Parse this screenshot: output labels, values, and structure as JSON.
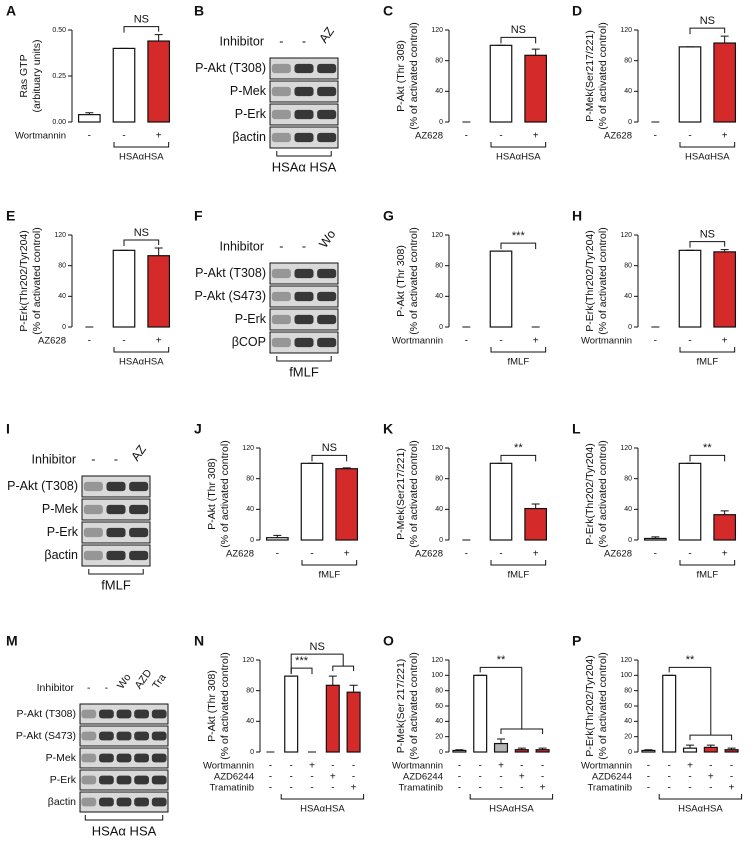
{
  "chart_data": [
    {
      "type": "bar",
      "label": "A",
      "ylabel": [
        "Ras GTP",
        "(arbituary units)"
      ],
      "ylim": [
        0,
        0.5
      ],
      "yticks": [
        {
          "value": 0,
          "label": "0.00"
        },
        {
          "value": 0.25,
          "label": "0.25"
        },
        {
          "value": 0.5,
          "label": "0.50"
        }
      ],
      "values": [
        0.04,
        0.4,
        0.44
      ],
      "errors": [
        0.01,
        0,
        0.035
      ],
      "colors": [
        "#ffffff",
        "#ffffff",
        "#d42a2a"
      ],
      "conditions": [
        {
          "name": "Wortmannin",
          "signs": [
            "-",
            "-",
            "+"
          ]
        }
      ],
      "group": "HSAαHSA",
      "annotations": [
        "NS"
      ]
    },
    {
      "type": "bar",
      "label": "C",
      "ylabel": [
        "P-Akt (Thr 308)",
        "(% of activated control)"
      ],
      "ylim": [
        0,
        120
      ],
      "yticks": [
        0,
        40,
        80,
        120
      ],
      "values": [
        0,
        100,
        87
      ],
      "errors": [
        0,
        0,
        8
      ],
      "colors": [
        "#ffffff",
        "#ffffff",
        "#d42a2a"
      ],
      "conditions": [
        {
          "name": "AZ628",
          "signs": [
            "-",
            "-",
            "+"
          ]
        }
      ],
      "group": "HSAαHSA",
      "annotations": [
        "NS"
      ]
    },
    {
      "type": "bar",
      "label": "D",
      "ylabel": [
        "P-Mek(Ser217/221)",
        "(% of activated control)"
      ],
      "ylim": [
        0,
        120
      ],
      "yticks": [
        0,
        40,
        80,
        120
      ],
      "values": [
        0,
        98,
        103
      ],
      "errors": [
        0,
        0,
        9
      ],
      "colors": [
        "#ffffff",
        "#ffffff",
        "#d42a2a"
      ],
      "conditions": [
        {
          "name": "AZ628",
          "signs": [
            "-",
            "-",
            "+"
          ]
        }
      ],
      "group": "HSAαHSA",
      "annotations": [
        "NS"
      ]
    },
    {
      "type": "bar",
      "label": "E",
      "ylabel": [
        "P-Erk(Thr202/Tyr204)",
        "(% of activated control)"
      ],
      "ylim": [
        0,
        120
      ],
      "yticks": [
        0,
        40,
        80,
        120
      ],
      "values": [
        0,
        100,
        93
      ],
      "errors": [
        0,
        0,
        10
      ],
      "colors": [
        "#ffffff",
        "#ffffff",
        "#d42a2a"
      ],
      "conditions": [
        {
          "name": "AZ628",
          "signs": [
            "-",
            "-",
            "+"
          ]
        }
      ],
      "group": "HSAαHSA",
      "annotations": [
        "NS"
      ]
    },
    {
      "type": "bar",
      "label": "G",
      "ylabel": [
        "P-Akt (Thr 308)",
        "(% of activated control)"
      ],
      "ylim": [
        0,
        120
      ],
      "yticks": [
        0,
        40,
        80,
        120
      ],
      "values": [
        0,
        99,
        0
      ],
      "errors": [
        0,
        0,
        0
      ],
      "colors": [
        "#ffffff",
        "#ffffff",
        "#d42a2a"
      ],
      "conditions": [
        {
          "name": "Wortmannin",
          "signs": [
            "-",
            "-",
            "+"
          ]
        }
      ],
      "group": "fMLF",
      "annotations": [
        "***"
      ]
    },
    {
      "type": "bar",
      "label": "H",
      "ylabel": [
        "P-Erk(Thr202/Tyr204)",
        "(% of activated control)"
      ],
      "ylim": [
        0,
        120
      ],
      "yticks": [
        0,
        40,
        80,
        120
      ],
      "values": [
        0,
        100,
        98
      ],
      "errors": [
        0,
        0,
        3
      ],
      "colors": [
        "#ffffff",
        "#ffffff",
        "#d42a2a"
      ],
      "conditions": [
        {
          "name": "Wortmannin",
          "signs": [
            "-",
            "-",
            "+"
          ]
        }
      ],
      "group": "fMLF",
      "annotations": [
        "NS"
      ]
    },
    {
      "type": "bar",
      "label": "J",
      "ylabel": [
        "P-Akt (Thr 308)",
        "(% of activated control)"
      ],
      "ylim": [
        0,
        120
      ],
      "yticks": [
        0,
        40,
        80,
        120
      ],
      "values": [
        3,
        100,
        93
      ],
      "errors": [
        3,
        0,
        1
      ],
      "colors": [
        "#ffffff",
        "#ffffff",
        "#d42a2a"
      ],
      "conditions": [
        {
          "name": "AZ628",
          "signs": [
            "-",
            "-",
            "+"
          ]
        }
      ],
      "group": "fMLF",
      "annotations": [
        "NS"
      ]
    },
    {
      "type": "bar",
      "label": "K",
      "ylabel": [
        "P-Mek(Ser217/221)",
        "(% of activated control)"
      ],
      "ylim": [
        0,
        120
      ],
      "yticks": [
        0,
        40,
        80,
        120
      ],
      "values": [
        0,
        100,
        41
      ],
      "errors": [
        0,
        0,
        6
      ],
      "colors": [
        "#ffffff",
        "#ffffff",
        "#d42a2a"
      ],
      "conditions": [
        {
          "name": "AZ628",
          "signs": [
            "-",
            "-",
            "+"
          ]
        }
      ],
      "group": "fMLF",
      "annotations": [
        "**"
      ]
    },
    {
      "type": "bar",
      "label": "L",
      "ylabel": [
        "P-Erk(Thr202/Tyr204)",
        "(% of activated control)"
      ],
      "ylim": [
        0,
        120
      ],
      "yticks": [
        0,
        40,
        80,
        120
      ],
      "values": [
        2,
        100,
        33
      ],
      "errors": [
        2,
        0,
        5
      ],
      "colors": [
        "#ffffff",
        "#ffffff",
        "#d42a2a"
      ],
      "conditions": [
        {
          "name": "AZ628",
          "signs": [
            "-",
            "-",
            "+"
          ]
        }
      ],
      "group": "fMLF",
      "annotations": [
        "**"
      ]
    },
    {
      "type": "bar",
      "label": "N",
      "ylabel": [
        "P-Akt (Thr 308)",
        "(% of activated control)"
      ],
      "ylim": [
        0,
        120
      ],
      "yticks": [
        0,
        40,
        80,
        120
      ],
      "values": [
        0,
        99,
        0,
        87,
        78
      ],
      "errors": [
        0,
        0,
        0,
        12,
        9
      ],
      "colors": [
        "#ffffff",
        "#ffffff",
        "#ffffff",
        "#d42a2a",
        "#d42a2a"
      ],
      "conditions": [
        {
          "name": "Wortmannin",
          "signs": [
            "-",
            "-",
            "+",
            "-",
            "-"
          ]
        },
        {
          "name": "AZD6244",
          "signs": [
            "-",
            "-",
            "-",
            "+",
            "-"
          ]
        },
        {
          "name": "Tramatinib",
          "signs": [
            "-",
            "-",
            "-",
            "-",
            "+"
          ]
        }
      ],
      "group": "HSAαHSA",
      "annotations": [
        "***",
        "NS"
      ]
    },
    {
      "type": "bar",
      "label": "O",
      "ylabel": [
        "P-Mek(Ser 217/221)",
        "(% of activated control)"
      ],
      "ylim": [
        0,
        120
      ],
      "yticks": [
        0,
        20,
        40,
        60,
        80,
        100,
        120
      ],
      "values": [
        2,
        100,
        11,
        3,
        3
      ],
      "errors": [
        1,
        0,
        6,
        2,
        2
      ],
      "colors": [
        "#ffffff",
        "#ffffff",
        "#b5b5b5",
        "#d42a2a",
        "#d42a2a"
      ],
      "conditions": [
        {
          "name": "Wortmannin",
          "signs": [
            "-",
            "-",
            "+",
            "-",
            "-"
          ]
        },
        {
          "name": "AZD6244",
          "signs": [
            "-",
            "-",
            "-",
            "+",
            "-"
          ]
        },
        {
          "name": "Tramatinib",
          "signs": [
            "-",
            "-",
            "-",
            "-",
            "+"
          ]
        }
      ],
      "group": "HSAαHSA",
      "annotations": [
        "**"
      ]
    },
    {
      "type": "bar",
      "label": "P",
      "ylabel": [
        "P-Erk(Thr202/Tyr204)",
        "(% of activated control)"
      ],
      "ylim": [
        0,
        120
      ],
      "yticks": [
        0,
        20,
        40,
        60,
        80,
        100,
        120
      ],
      "values": [
        2,
        100,
        5,
        6,
        3
      ],
      "errors": [
        1,
        0,
        4,
        3,
        2
      ],
      "colors": [
        "#ffffff",
        "#ffffff",
        "#ffffff",
        "#d42a2a",
        "#d42a2a"
      ],
      "conditions": [
        {
          "name": "Wortmannin",
          "signs": [
            "-",
            "-",
            "+",
            "-",
            "-"
          ]
        },
        {
          "name": "AZD6244",
          "signs": [
            "-",
            "-",
            "-",
            "+",
            "-"
          ]
        },
        {
          "name": "Tramatinib",
          "signs": [
            "-",
            "-",
            "-",
            "-",
            "+"
          ]
        }
      ],
      "group": "HSAαHSA",
      "annotations": [
        "**"
      ]
    }
  ],
  "blots": [
    {
      "label": "B",
      "inhibitor": "Inhibitor",
      "lanes": [
        "-",
        "-",
        "AZ"
      ],
      "rows": [
        "P-Akt (T308)",
        "P-Mek",
        "P-Erk",
        "βactin"
      ],
      "group": "HSAα HSA"
    },
    {
      "label": "F",
      "inhibitor": "Inhibitor",
      "lanes": [
        "-",
        "-",
        "Wo"
      ],
      "rows": [
        "P-Akt (T308)",
        "P-Akt (S473)",
        "P-Erk",
        "βCOP"
      ],
      "group": "fMLF"
    },
    {
      "label": "I",
      "inhibitor": "Inhibitor",
      "lanes": [
        "-",
        "-",
        "AZ"
      ],
      "rows": [
        "P-Akt (T308)",
        "P-Mek",
        "P-Erk",
        "βactin"
      ],
      "group": "fMLF"
    },
    {
      "label": "M",
      "inhibitor": "Inhibitor",
      "lanes": [
        "-",
        "-",
        "Wo",
        "AZD",
        "Tra"
      ],
      "rows": [
        "P-Akt (T308)",
        "P-Akt (S473)",
        "P-Mek",
        "P-Erk",
        "βactin"
      ],
      "group": "HSAα HSA"
    }
  ]
}
